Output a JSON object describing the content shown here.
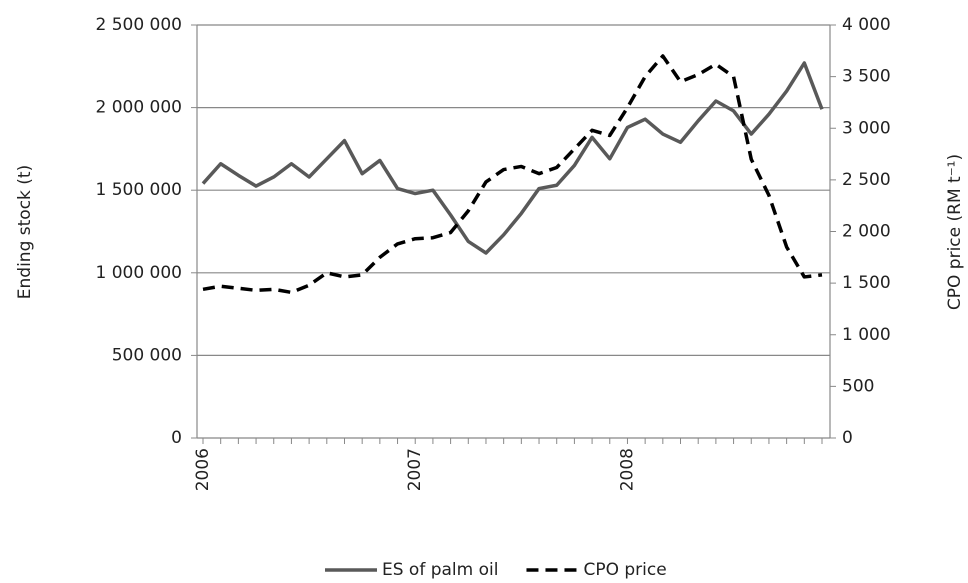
{
  "chart_data": {
    "type": "line",
    "y_label": "Ending stock (t)",
    "y2_label": "CPO price (RM t⁻¹)",
    "categories": [
      "2006",
      null,
      null,
      null,
      null,
      null,
      null,
      null,
      null,
      null,
      null,
      null,
      "2007",
      null,
      null,
      null,
      null,
      null,
      null,
      null,
      null,
      null,
      null,
      null,
      "2008",
      null,
      null,
      null,
      null,
      null,
      null,
      null,
      null,
      null,
      null,
      null
    ],
    "series": [
      {
        "name": "ES of palm oil",
        "color": "#595959",
        "line_style": "solid",
        "values": [
          1540000,
          1660000,
          1590000,
          1525000,
          1580000,
          1660000,
          1580000,
          1690000,
          1800000,
          1600000,
          1680000,
          1510000,
          1480000,
          1500000,
          1350000,
          1190000,
          1120000,
          1230000,
          1360000,
          1510000,
          1530000,
          1650000,
          1820000,
          1690000,
          1880000,
          1930000,
          1840000,
          1790000,
          1920000,
          2040000,
          1980000,
          1840000,
          1960000,
          2100000,
          2270000,
          1990000
        ]
      },
      {
        "name": "CPO price",
        "color": "#000000",
        "line_style": "dashed",
        "axis": "y2",
        "values": [
          1440,
          1470,
          1450,
          1430,
          1440,
          1410,
          1480,
          1600,
          1560,
          1580,
          1750,
          1880,
          1930,
          1940,
          1990,
          2200,
          2480,
          2600,
          2630,
          2560,
          2620,
          2800,
          2980,
          2930,
          3200,
          3500,
          3700,
          3450,
          3520,
          3620,
          3500,
          2700,
          2350,
          1850,
          1560,
          1580
        ]
      }
    ],
    "ylim": [
      0,
      2500000
    ],
    "yticks": [
      0,
      {
        "value": 500000,
        "label": "500 000"
      },
      {
        "value": 1000000,
        "label": "1 000 000"
      },
      {
        "value": 1500000,
        "label": "1 500 000"
      },
      {
        "value": 2000000,
        "label": "2 000 000"
      },
      {
        "value": 2500000,
        "label": "2 500 000"
      }
    ],
    "y2lim": [
      0,
      4000
    ],
    "y2ticks": [
      0,
      500,
      {
        "value": 1000,
        "label": "1 000"
      },
      {
        "value": 1500,
        "label": "1 500"
      },
      {
        "value": 2000,
        "label": "2 000"
      },
      {
        "value": 2500,
        "label": "2 500"
      },
      {
        "value": 3000,
        "label": "3 000"
      },
      {
        "value": 3500,
        "label": "3 500"
      },
      {
        "value": 4000,
        "label": "4 000"
      }
    ],
    "grid": true,
    "legend": "bottom"
  }
}
